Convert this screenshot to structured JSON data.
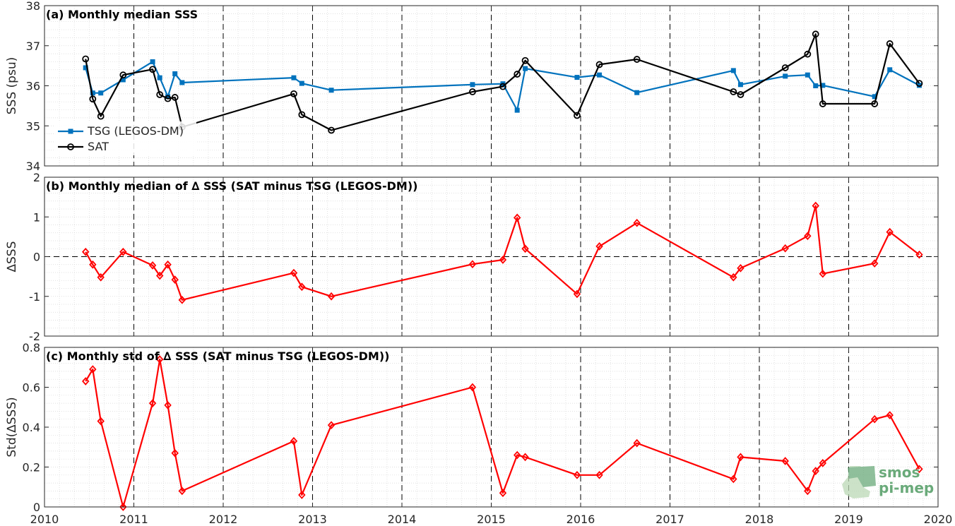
{
  "chart_data": [
    {
      "type": "line",
      "title": "(a) Monthly median SSS",
      "ylabel": "SSS (psu)",
      "xlim": [
        2010,
        2020
      ],
      "ylim": [
        34,
        38
      ],
      "yticks": [
        "34",
        "35",
        "36",
        "37",
        "38"
      ],
      "grid": true,
      "legend_position": "bottom-left",
      "series": [
        {
          "name": "TSG (LEGOS-DM)",
          "color": "#0072BD",
          "marker": "square",
          "x": [
            2010.46,
            2010.54,
            2010.63,
            2010.88,
            2011.21,
            2011.29,
            2011.38,
            2011.46,
            2011.54,
            2012.79,
            2012.88,
            2013.21,
            2014.79,
            2015.13,
            2015.29,
            2015.38,
            2015.96,
            2016.21,
            2016.63,
            2017.71,
            2017.79,
            2018.29,
            2018.54,
            2018.63,
            2018.71,
            2019.29,
            2019.46,
            2019.79
          ],
          "y": [
            36.45,
            35.82,
            35.82,
            36.15,
            36.6,
            36.2,
            35.73,
            36.3,
            36.08,
            36.2,
            36.06,
            35.89,
            36.03,
            36.05,
            35.39,
            36.43,
            36.21,
            36.27,
            35.83,
            36.38,
            36.03,
            36.24,
            36.27,
            36.0,
            36.01,
            35.73,
            36.4,
            36.01
          ]
        },
        {
          "name": "SAT",
          "color": "#000000",
          "marker": "circle",
          "x": [
            2010.46,
            2010.54,
            2010.63,
            2010.88,
            2011.21,
            2011.29,
            2011.38,
            2011.46,
            2011.54,
            2012.79,
            2012.88,
            2013.21,
            2014.79,
            2015.13,
            2015.29,
            2015.38,
            2015.96,
            2016.21,
            2016.63,
            2017.71,
            2017.79,
            2018.29,
            2018.54,
            2018.63,
            2018.71,
            2019.29,
            2019.46,
            2019.79
          ],
          "y": [
            36.67,
            35.67,
            35.24,
            36.27,
            36.41,
            35.78,
            35.68,
            35.71,
            34.97,
            35.8,
            35.28,
            34.89,
            35.85,
            35.98,
            36.29,
            36.63,
            35.26,
            36.53,
            36.66,
            35.85,
            35.78,
            36.45,
            36.79,
            37.29,
            35.55,
            35.55,
            37.05,
            36.06
          ]
        }
      ]
    },
    {
      "type": "line",
      "title": "(b) Monthly median of ∆ SSS (SAT minus TSG (LEGOS-DM))",
      "ylabel": "∆SSS",
      "xlim": [
        2010,
        2020
      ],
      "ylim": [
        -2,
        2
      ],
      "yticks": [
        "-2",
        "-1",
        "0",
        "1",
        "2"
      ],
      "grid": true,
      "zero_line": true,
      "series": [
        {
          "color": "#FF0000",
          "marker": "diamond",
          "x": [
            2010.46,
            2010.54,
            2010.63,
            2010.88,
            2011.21,
            2011.29,
            2011.38,
            2011.46,
            2011.54,
            2012.79,
            2012.88,
            2013.21,
            2014.79,
            2015.13,
            2015.29,
            2015.38,
            2015.96,
            2016.21,
            2016.63,
            2017.71,
            2017.79,
            2018.29,
            2018.54,
            2018.63,
            2018.71,
            2019.29,
            2019.46,
            2019.79
          ],
          "y": [
            0.12,
            -0.2,
            -0.52,
            0.12,
            -0.22,
            -0.48,
            -0.2,
            -0.58,
            -1.09,
            -0.41,
            -0.76,
            -1.0,
            -0.19,
            -0.08,
            0.98,
            0.2,
            -0.94,
            0.26,
            0.85,
            -0.52,
            -0.29,
            0.21,
            0.52,
            1.28,
            -0.43,
            -0.17,
            0.62,
            0.05
          ]
        }
      ]
    },
    {
      "type": "line",
      "title": "(c) Monthly std of ∆ SSS (SAT minus TSG (LEGOS-DM))",
      "ylabel": "Std(∆SSS)",
      "xlim": [
        2010,
        2020
      ],
      "ylim": [
        0,
        0.8
      ],
      "yticks": [
        "0",
        "0.2",
        "0.4",
        "0.6",
        "0.8"
      ],
      "xticks": [
        "2010",
        "2011",
        "2012",
        "2013",
        "2014",
        "2015",
        "2016",
        "2017",
        "2018",
        "2019",
        "2020"
      ],
      "grid": true,
      "series": [
        {
          "color": "#FF0000",
          "marker": "diamond",
          "x": [
            2010.46,
            2010.54,
            2010.63,
            2010.88,
            2011.21,
            2011.29,
            2011.38,
            2011.46,
            2011.54,
            2012.79,
            2012.88,
            2013.21,
            2014.79,
            2015.13,
            2015.29,
            2015.38,
            2015.96,
            2016.21,
            2016.63,
            2017.71,
            2017.79,
            2018.29,
            2018.54,
            2018.63,
            2018.71,
            2019.29,
            2019.46,
            2019.79
          ],
          "y": [
            0.63,
            0.69,
            0.43,
            0.0,
            0.52,
            0.74,
            0.51,
            0.27,
            0.08,
            0.33,
            0.06,
            0.41,
            0.6,
            0.07,
            0.26,
            0.25,
            0.16,
            0.16,
            0.32,
            0.14,
            0.25,
            0.23,
            0.08,
            0.18,
            0.22,
            0.44,
            0.46,
            0.19
          ]
        }
      ]
    }
  ],
  "decade_lines": [
    2011,
    2012,
    2013,
    2014,
    2015,
    2016,
    2017,
    2018,
    2019
  ],
  "watermark": {
    "line1": "smos",
    "line2": "pi-mep",
    "color": "#6aaa7a",
    "icon": "smos-pimep-logo-icon"
  }
}
